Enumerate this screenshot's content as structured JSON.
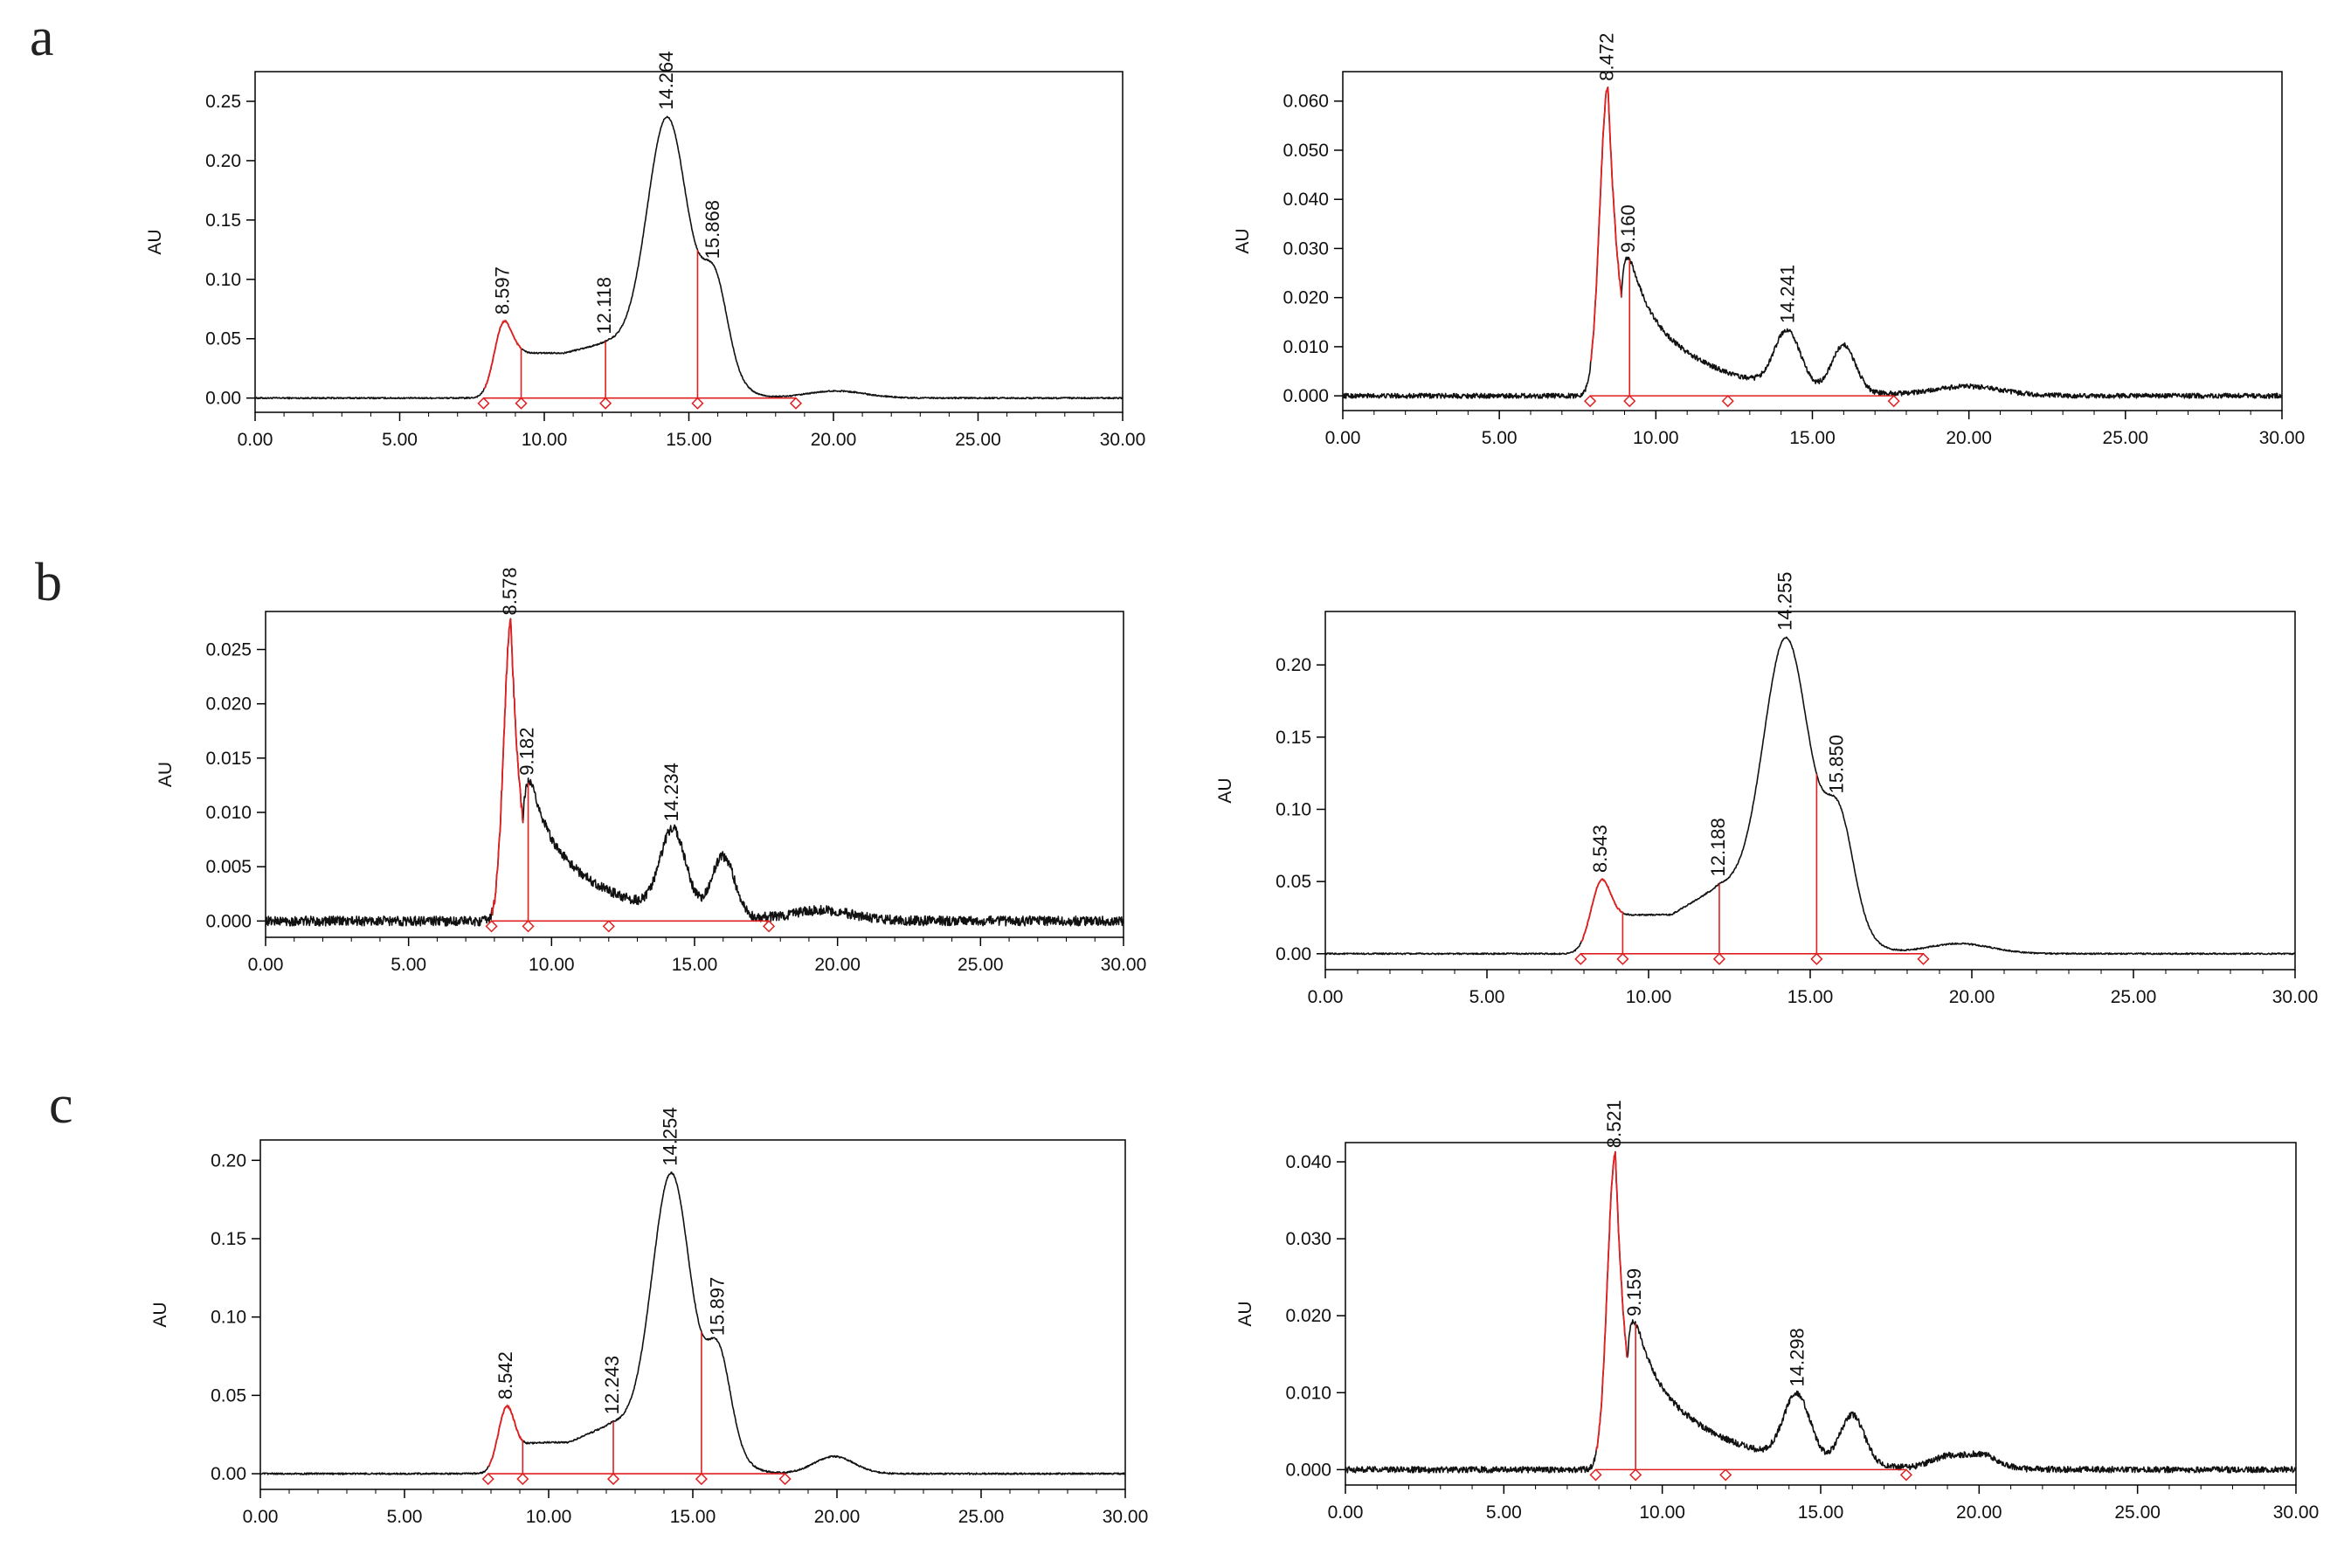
{
  "row_labels": [
    "a",
    "b",
    "c"
  ],
  "colors": {
    "trace": "#111111",
    "integration": "#e02020",
    "axis": "#000000"
  },
  "chart_data": [
    {
      "type": "line",
      "row": "a",
      "col": 0,
      "xlabel": "",
      "ylabel": "AU",
      "xlim": [
        0,
        30
      ],
      "ylim": [
        -0.012,
        0.275
      ],
      "xticks": [
        "0.00",
        "5.00",
        "10.00",
        "15.00",
        "20.00",
        "25.00",
        "30.00"
      ],
      "yticks": [
        "0.00",
        "0.05",
        "0.10",
        "0.15",
        "0.20",
        "0.25"
      ],
      "ytick_values": [
        0,
        0.05,
        0.1,
        0.15,
        0.2,
        0.25
      ],
      "noise": 0.0006,
      "components": [
        {
          "type": "gauss",
          "a": 0.062,
          "mu": 8.6,
          "s": 0.33,
          "mu_end": 9.2
        },
        {
          "type": "plateau",
          "a": 0.038,
          "x0": 9.0,
          "x1": 12.2,
          "x2": 16.5,
          "k": 0.35,
          "rise": 0.009
        },
        {
          "type": "gauss",
          "a": 0.19,
          "mu": 14.25,
          "s": 0.68
        },
        {
          "type": "gauss",
          "a": 0.06,
          "mu": 15.9,
          "s": 0.42
        },
        {
          "type": "gauss",
          "a": 0.006,
          "mu": 20.1,
          "s": 1.0
        }
      ],
      "red_range": [
        7.9,
        9.2
      ],
      "drop_lines": [
        9.2,
        12.118,
        15.3
      ],
      "markers": [
        7.9,
        9.2,
        12.118,
        15.3,
        18.7
      ],
      "peak_labels": [
        {
          "rt": "8.597",
          "x": 8.597
        },
        {
          "rt": "12.118",
          "x": 12.118
        },
        {
          "rt": "14.264",
          "x": 14.264
        },
        {
          "rt": "15.868",
          "x": 15.868
        }
      ]
    },
    {
      "type": "line",
      "row": "a",
      "col": 1,
      "xlabel": "",
      "ylabel": "AU",
      "xlim": [
        0,
        30
      ],
      "ylim": [
        -0.003,
        0.066
      ],
      "xticks": [
        "0.00",
        "5.00",
        "10.00",
        "15.00",
        "20.00",
        "25.00",
        "30.00"
      ],
      "yticks": [
        "0.000",
        "0.010",
        "0.020",
        "0.030",
        "0.040",
        "0.050",
        "0.060"
      ],
      "ytick_values": [
        0,
        0.01,
        0.02,
        0.03,
        0.04,
        0.05,
        0.06
      ],
      "noise": 0.0005,
      "components": [
        {
          "type": "spike",
          "a": 0.063,
          "mu": 8.47,
          "rise": 0.26,
          "tau": 0.38
        },
        {
          "type": "tail",
          "a": 0.024,
          "x0": 8.9,
          "tau": 2.1
        },
        {
          "type": "gauss",
          "a": 0.0115,
          "mu": 14.2,
          "s": 0.42
        },
        {
          "type": "gauss",
          "a": 0.0095,
          "mu": 16.0,
          "s": 0.38
        },
        {
          "type": "gauss",
          "a": 0.0018,
          "mu": 20.0,
          "s": 1.0
        }
      ],
      "red_range": [
        7.9,
        8.9
      ],
      "drop_lines": [
        9.16
      ],
      "markers": [
        7.9,
        9.16,
        12.3,
        17.6
      ],
      "peak_labels": [
        {
          "rt": "8.472",
          "x": 8.472
        },
        {
          "rt": "9.160",
          "x": 9.16
        },
        {
          "rt": "14.241",
          "x": 14.241
        }
      ]
    },
    {
      "type": "line",
      "row": "b",
      "col": 0,
      "xlabel": "",
      "ylabel": "AU",
      "xlim": [
        0,
        30
      ],
      "ylim": [
        -0.0015,
        0.0285
      ],
      "xticks": [
        "0.00",
        "5.00",
        "10.00",
        "15.00",
        "20.00",
        "25.00",
        "30.00"
      ],
      "yticks": [
        "0.000",
        "0.005",
        "0.010",
        "0.015",
        "0.020",
        "0.025"
      ],
      "ytick_values": [
        0,
        0.005,
        0.01,
        0.015,
        0.02,
        0.025
      ],
      "noise": 0.00045,
      "components": [
        {
          "type": "spike",
          "a": 0.0275,
          "mu": 8.58,
          "rise": 0.25,
          "tau": 0.38
        },
        {
          "type": "tail",
          "a": 0.011,
          "x0": 9.0,
          "tau": 2.2
        },
        {
          "type": "gauss",
          "a": 0.0075,
          "mu": 14.25,
          "s": 0.45
        },
        {
          "type": "gauss",
          "a": 0.0055,
          "mu": 16.0,
          "s": 0.4
        },
        {
          "type": "gauss",
          "a": 0.0009,
          "mu": 19.5,
          "s": 1.0
        }
      ],
      "red_range": [
        7.9,
        9.0
      ],
      "drop_lines": [
        9.182
      ],
      "markers": [
        7.9,
        9.182,
        12.0,
        17.6
      ],
      "peak_labels": [
        {
          "rt": "8.578",
          "x": 8.578
        },
        {
          "rt": "9.182",
          "x": 9.182
        },
        {
          "rt": "14.234",
          "x": 14.234
        }
      ]
    },
    {
      "type": "line",
      "row": "b",
      "col": 1,
      "xlabel": "",
      "ylabel": "AU",
      "xlim": [
        0,
        30
      ],
      "ylim": [
        -0.011,
        0.237
      ],
      "xticks": [
        "0.00",
        "5.00",
        "10.00",
        "15.00",
        "20.00",
        "25.00",
        "30.00"
      ],
      "yticks": [
        "0.00",
        "0.05",
        "0.10",
        "0.15",
        "0.20"
      ],
      "ytick_values": [
        0,
        0.05,
        0.1,
        0.15,
        0.2
      ],
      "noise": 0.0005,
      "components": [
        {
          "type": "gauss",
          "a": 0.05,
          "mu": 8.55,
          "s": 0.33
        },
        {
          "type": "plateau",
          "a": 0.027,
          "x0": 9.0,
          "x1": 12.2,
          "x2": 16.5,
          "k": 0.35,
          "rise": 0.02
        },
        {
          "type": "gauss",
          "a": 0.172,
          "mu": 14.25,
          "s": 0.68
        },
        {
          "type": "gauss",
          "a": 0.055,
          "mu": 15.9,
          "s": 0.42
        },
        {
          "type": "gauss",
          "a": 0.007,
          "mu": 19.6,
          "s": 1.0
        }
      ],
      "red_range": [
        7.9,
        9.2
      ],
      "drop_lines": [
        9.2,
        12.188,
        15.2
      ],
      "markers": [
        7.9,
        9.2,
        12.188,
        15.2,
        18.5
      ],
      "peak_labels": [
        {
          "rt": "8.543",
          "x": 8.543
        },
        {
          "rt": "12.188",
          "x": 12.188
        },
        {
          "rt": "14.255",
          "x": 14.255
        },
        {
          "rt": "15.850",
          "x": 15.85
        }
      ]
    },
    {
      "type": "line",
      "row": "c",
      "col": 0,
      "xlabel": "",
      "ylabel": "AU",
      "xlim": [
        0,
        30
      ],
      "ylim": [
        -0.01,
        0.213
      ],
      "xticks": [
        "0.00",
        "5.00",
        "10.00",
        "15.00",
        "20.00",
        "25.00",
        "30.00"
      ],
      "yticks": [
        "0.00",
        "0.05",
        "0.10",
        "0.15",
        "0.20"
      ],
      "ytick_values": [
        0,
        0.05,
        0.1,
        0.15,
        0.2
      ],
      "noise": 0.0005,
      "components": [
        {
          "type": "gauss",
          "a": 0.042,
          "mu": 8.55,
          "s": 0.3
        },
        {
          "type": "plateau",
          "a": 0.02,
          "x0": 9.0,
          "x1": 12.2,
          "x2": 16.5,
          "k": 0.35,
          "rise": 0.012
        },
        {
          "type": "gauss",
          "a": 0.16,
          "mu": 14.25,
          "s": 0.65
        },
        {
          "type": "gauss",
          "a": 0.05,
          "mu": 15.9,
          "s": 0.4
        },
        {
          "type": "gauss",
          "a": 0.011,
          "mu": 19.9,
          "s": 0.7
        }
      ],
      "red_range": [
        7.9,
        9.1
      ],
      "drop_lines": [
        9.1,
        12.243,
        15.3
      ],
      "markers": [
        7.9,
        9.1,
        12.243,
        15.3,
        18.2
      ],
      "peak_labels": [
        {
          "rt": "8.542",
          "x": 8.542
        },
        {
          "rt": "12.243",
          "x": 12.243
        },
        {
          "rt": "14.254",
          "x": 14.254
        },
        {
          "rt": "15.897",
          "x": 15.897
        }
      ]
    },
    {
      "type": "line",
      "row": "c",
      "col": 1,
      "xlabel": "",
      "ylabel": "AU",
      "xlim": [
        0,
        30
      ],
      "ylim": [
        -0.002,
        0.0425
      ],
      "xticks": [
        "0.00",
        "5.00",
        "10.00",
        "15.00",
        "20.00",
        "25.00",
        "30.00"
      ],
      "yticks": [
        "0.000",
        "0.010",
        "0.020",
        "0.030",
        "0.040"
      ],
      "ytick_values": [
        0,
        0.01,
        0.02,
        0.03,
        0.04
      ],
      "noise": 0.0004,
      "components": [
        {
          "type": "spike",
          "a": 0.041,
          "mu": 8.52,
          "rise": 0.25,
          "tau": 0.36
        },
        {
          "type": "tail",
          "a": 0.0165,
          "x0": 8.9,
          "tau": 2.2
        },
        {
          "type": "gauss",
          "a": 0.0085,
          "mu": 14.25,
          "s": 0.42
        },
        {
          "type": "gauss",
          "a": 0.0065,
          "mu": 16.0,
          "s": 0.38
        },
        {
          "type": "gauss",
          "a": 0.0015,
          "mu": 19.0,
          "s": 0.5
        },
        {
          "type": "gauss",
          "a": 0.0018,
          "mu": 20.1,
          "s": 0.5
        }
      ],
      "red_range": [
        7.9,
        8.9
      ],
      "drop_lines": [
        9.159
      ],
      "markers": [
        7.9,
        9.159,
        12.0,
        17.7
      ],
      "peak_labels": [
        {
          "rt": "8.521",
          "x": 8.521
        },
        {
          "rt": "9.159",
          "x": 9.159
        },
        {
          "rt": "14.298",
          "x": 14.298
        }
      ]
    }
  ]
}
